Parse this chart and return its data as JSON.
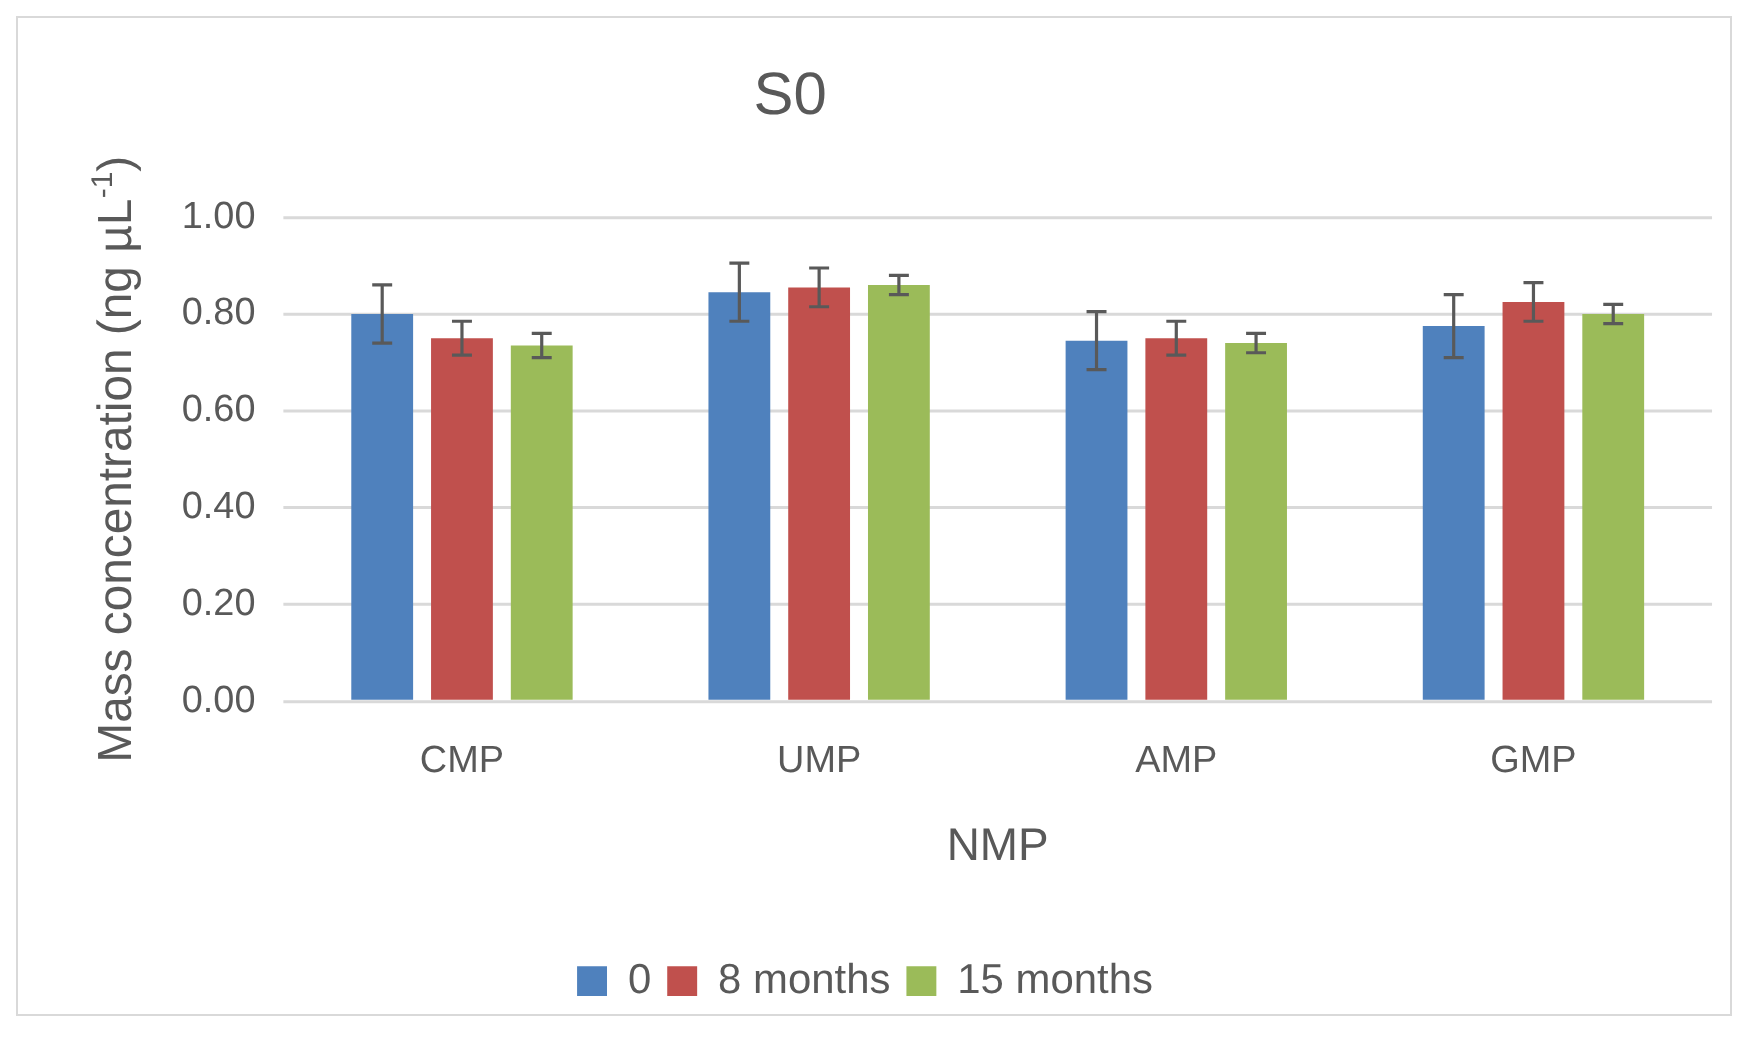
{
  "chart_data": {
    "type": "bar",
    "title": "S0",
    "xlabel": "NMP",
    "ylabel": "Mass concentration (ng µL$^{-1}$)",
    "categories": [
      "CMP",
      "UMP",
      "AMP",
      "GMP"
    ],
    "series": [
      {
        "name": "0",
        "color": "#4f81bd",
        "values": [
          0.8,
          0.845,
          0.745,
          0.775
        ],
        "errors": [
          0.06,
          0.06,
          0.06,
          0.065
        ]
      },
      {
        "name": "8 months",
        "color": "#c0504d",
        "values": [
          0.75,
          0.855,
          0.75,
          0.825
        ],
        "errors": [
          0.035,
          0.04,
          0.035,
          0.04
        ]
      },
      {
        "name": "15 months",
        "color": "#9bbb59",
        "values": [
          0.735,
          0.86,
          0.74,
          0.8
        ],
        "errors": [
          0.025,
          0.02,
          0.02,
          0.02
        ]
      }
    ],
    "ylim": [
      0,
      1
    ],
    "yticks": [
      {
        "value": 0,
        "label": "0.00"
      },
      {
        "value": 0.2,
        "label": "0.20"
      },
      {
        "value": 0.4,
        "label": "0.40"
      },
      {
        "value": 0.6,
        "label": "0.60"
      },
      {
        "value": 0.8,
        "label": "0.80"
      },
      {
        "value": 1,
        "label": "1.00"
      }
    ],
    "grid": "y",
    "legend": "bottom"
  }
}
